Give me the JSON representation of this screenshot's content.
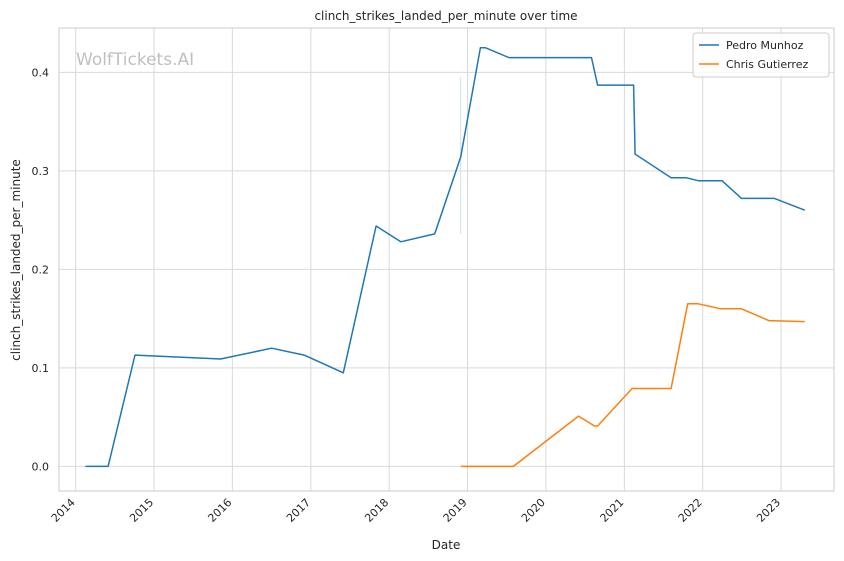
{
  "watermark": "WolfTickets.AI",
  "chart_data": {
    "type": "line",
    "title": "clinch_strikes_landed_per_minute over time",
    "xlabel": "Date",
    "ylabel": "clinch_strikes_landed_per_minute",
    "xlim": [
      "2013-10-15",
      "2023-09-05"
    ],
    "ylim": [
      -0.025,
      0.445
    ],
    "x_ticks": [
      "2014",
      "2015",
      "2016",
      "2017",
      "2018",
      "2019",
      "2020",
      "2021",
      "2022",
      "2023"
    ],
    "y_ticks": [
      "0.0",
      "0.1",
      "0.2",
      "0.3",
      "0.4"
    ],
    "grid": true,
    "legend": "top-right",
    "series": [
      {
        "name": "Pedro Munhoz",
        "color": "#1f77b4",
        "points": [
          [
            "2014-02-15",
            0.0
          ],
          [
            "2014-06-01",
            0.0
          ],
          [
            "2014-10-04",
            0.113
          ],
          [
            "2015-11-07",
            0.109
          ],
          [
            "2016-07-02",
            0.12
          ],
          [
            "2016-12-01",
            0.113
          ],
          [
            "2017-06-01",
            0.095
          ],
          [
            "2017-11-01",
            0.244
          ],
          [
            "2018-02-24",
            0.228
          ],
          [
            "2018-08-01",
            0.236
          ],
          [
            "2018-11-30",
            0.314
          ],
          [
            "2019-03-02",
            0.425
          ],
          [
            "2019-03-25",
            0.425
          ],
          [
            "2019-07-13",
            0.415
          ],
          [
            "2020-08-01",
            0.415
          ],
          [
            "2020-08-29",
            0.387
          ],
          [
            "2021-02-13",
            0.387
          ],
          [
            "2021-02-20",
            0.317
          ],
          [
            "2021-08-07",
            0.293
          ],
          [
            "2021-10-15",
            0.293
          ],
          [
            "2021-12-11",
            0.29
          ],
          [
            "2022-04-01",
            0.29
          ],
          [
            "2022-07-01",
            0.272
          ],
          [
            "2022-12-01",
            0.272
          ],
          [
            "2023-04-22",
            0.26
          ]
        ]
      },
      {
        "name": "Chris Gutierrez",
        "color": "#ff7f0e",
        "points": [
          [
            "2018-12-01",
            0.0
          ],
          [
            "2019-08-03",
            0.0
          ],
          [
            "2020-06-01",
            0.051
          ],
          [
            "2020-08-15",
            0.041
          ],
          [
            "2020-08-29",
            0.041
          ],
          [
            "2021-02-06",
            0.079
          ],
          [
            "2021-08-07",
            0.079
          ],
          [
            "2021-10-23",
            0.165
          ],
          [
            "2021-12-11",
            0.165
          ],
          [
            "2022-03-26",
            0.16
          ],
          [
            "2022-07-01",
            0.16
          ],
          [
            "2022-11-05",
            0.148
          ],
          [
            "2023-04-22",
            0.147
          ]
        ]
      }
    ]
  }
}
